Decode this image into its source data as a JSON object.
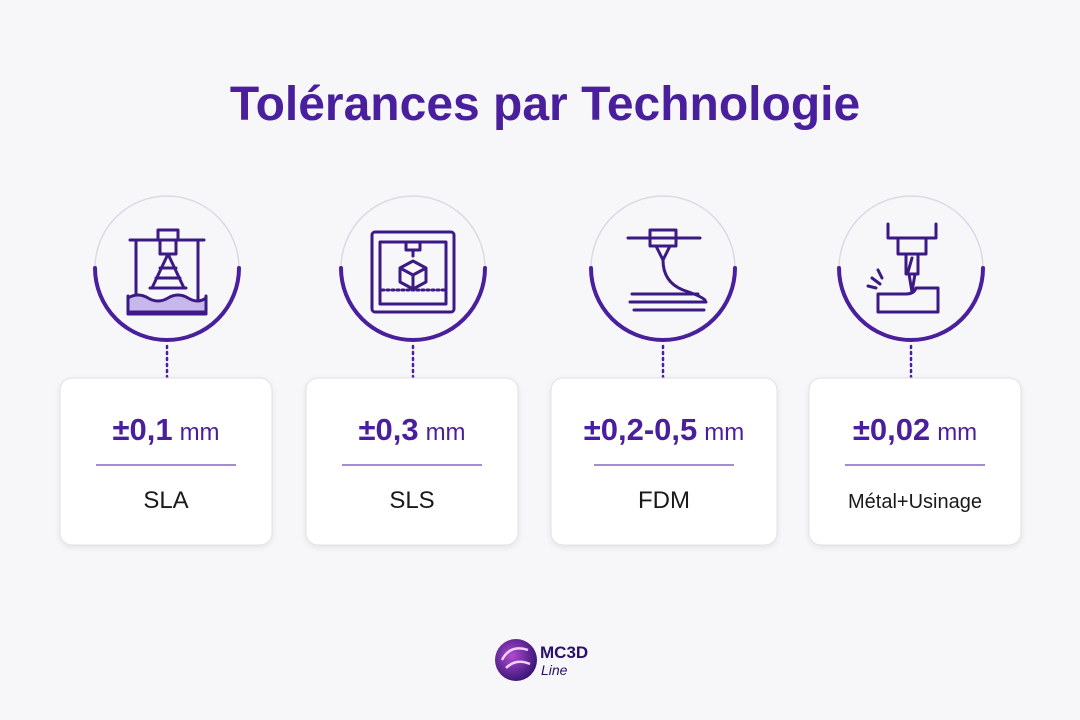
{
  "title": "Tolérances par Technologie",
  "cards": [
    {
      "value": "±0,1",
      "unit": "mm",
      "label": "SLA"
    },
    {
      "value": "±0,3",
      "unit": "mm",
      "label": "SLS"
    },
    {
      "value": "±0,2-0,5",
      "unit": "mm",
      "label": "FDM"
    },
    {
      "value": "±0,02",
      "unit": "mm",
      "label": "Métal+Usinage"
    }
  ],
  "logo": {
    "name": "MC3D",
    "sub": "Line"
  }
}
